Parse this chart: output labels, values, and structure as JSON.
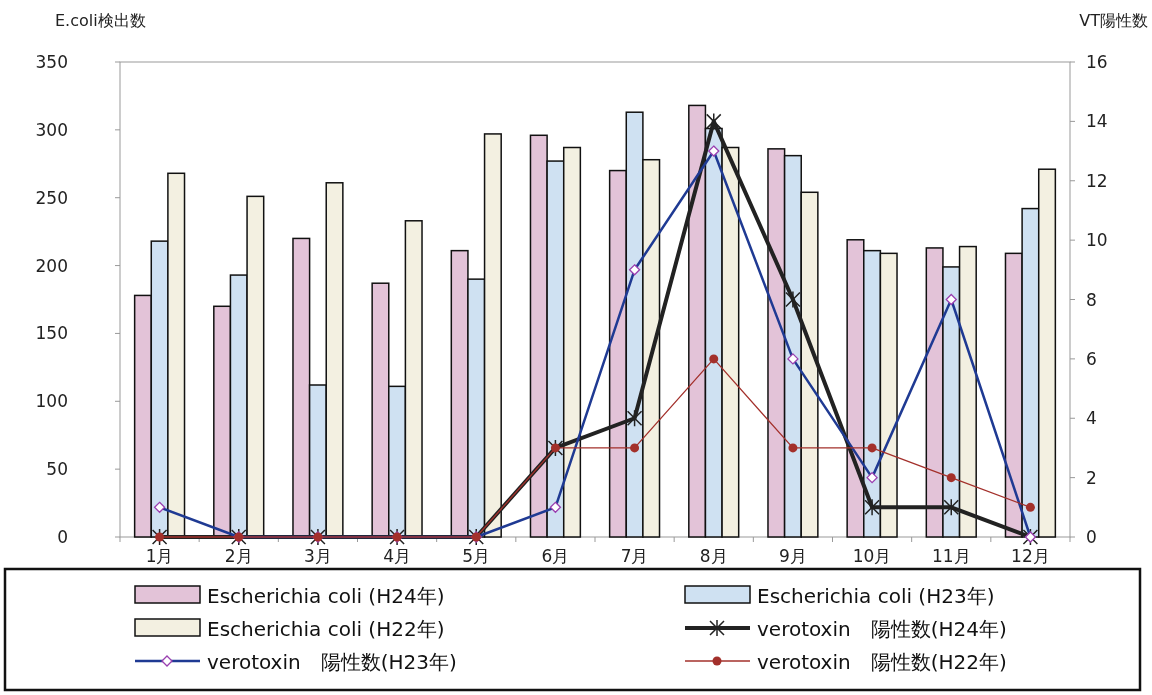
{
  "chart_data": {
    "type": "bar",
    "ylabel": "E.coli検出数",
    "y2label": "VT陽性数",
    "categories": [
      "1月",
      "2月",
      "3月",
      "4月",
      "5月",
      "6月",
      "7月",
      "8月",
      "9月",
      "10月",
      "11月",
      "12月"
    ],
    "series": [
      {
        "name": "Escherichia coli (H24年)",
        "type": "bar",
        "color": "#e3c3d8",
        "values": [
          178,
          170,
          220,
          187,
          211,
          296,
          270,
          318,
          286,
          219,
          213,
          209
        ]
      },
      {
        "name": "Escherichia coli (H23年)",
        "type": "bar",
        "color": "#cfe1f2",
        "values": [
          218,
          193,
          112,
          111,
          190,
          277,
          313,
          301,
          281,
          211,
          199,
          242
        ]
      },
      {
        "name": "Escherichia coli (H22年)",
        "type": "bar",
        "color": "#f3f0e1",
        "values": [
          268,
          251,
          261,
          233,
          297,
          287,
          278,
          287,
          254,
          209,
          214,
          271
        ]
      },
      {
        "name": "verotoxin　陽性数(H24年)",
        "type": "line",
        "axis": "y2",
        "color": "#222222",
        "marker": "cross",
        "values": [
          0,
          0,
          0,
          0,
          0,
          3,
          4,
          14,
          8,
          1,
          1,
          0
        ]
      },
      {
        "name": "verotoxin　陽性数(H23年)",
        "type": "line",
        "axis": "y2",
        "color": "#1f3a93",
        "marker": "diamond",
        "values": [
          1,
          0,
          0,
          0,
          0,
          1,
          9,
          13,
          6,
          2,
          8,
          0
        ]
      },
      {
        "name": "verotoxin　陽性数(H22年)",
        "type": "line",
        "axis": "y2",
        "color": "#a3302b",
        "marker": "circle",
        "values": [
          0,
          0,
          0,
          0,
          0,
          3,
          3,
          6,
          3,
          3,
          2,
          1
        ]
      }
    ],
    "ylim": [
      0,
      350
    ],
    "yticks": [
      0,
      50,
      100,
      150,
      200,
      250,
      300,
      350
    ],
    "y2lim": [
      0,
      16
    ],
    "y2ticks": [
      0,
      2,
      4,
      6,
      8,
      10,
      12,
      14,
      16
    ],
    "legend": "bottom"
  }
}
